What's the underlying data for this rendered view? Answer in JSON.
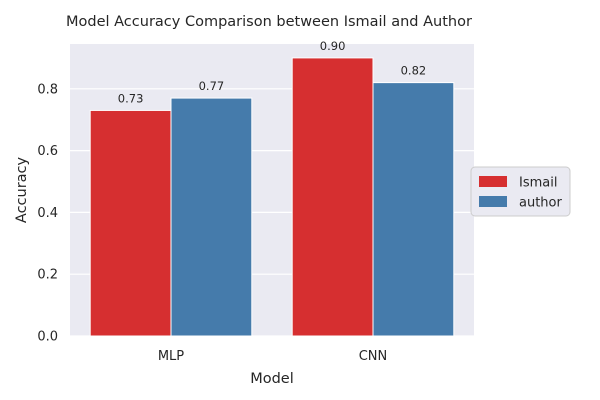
{
  "chart_data": {
    "type": "bar",
    "title": "Model Accuracy Comparison between Ismail and Author",
    "xlabel": "Model",
    "ylabel": "Accuracy",
    "categories": [
      "MLP",
      "CNN"
    ],
    "series": [
      {
        "name": "Ismail",
        "values": [
          0.73,
          0.9
        ],
        "labels": [
          "0.73",
          "0.90"
        ],
        "color": "#d62f30"
      },
      {
        "name": "author",
        "values": [
          0.77,
          0.82
        ],
        "labels": [
          "0.77",
          "0.82"
        ],
        "color": "#457bab"
      }
    ],
    "ylim": [
      0,
      0.945
    ],
    "yticks": [
      0.0,
      0.2,
      0.4,
      0.6,
      0.8
    ],
    "ytick_labels": [
      "0.0",
      "0.2",
      "0.4",
      "0.6",
      "0.8"
    ],
    "grid": true,
    "legend_position": "center-right",
    "background_color": "#eaeaf2",
    "grid_color": "#ffffff"
  }
}
